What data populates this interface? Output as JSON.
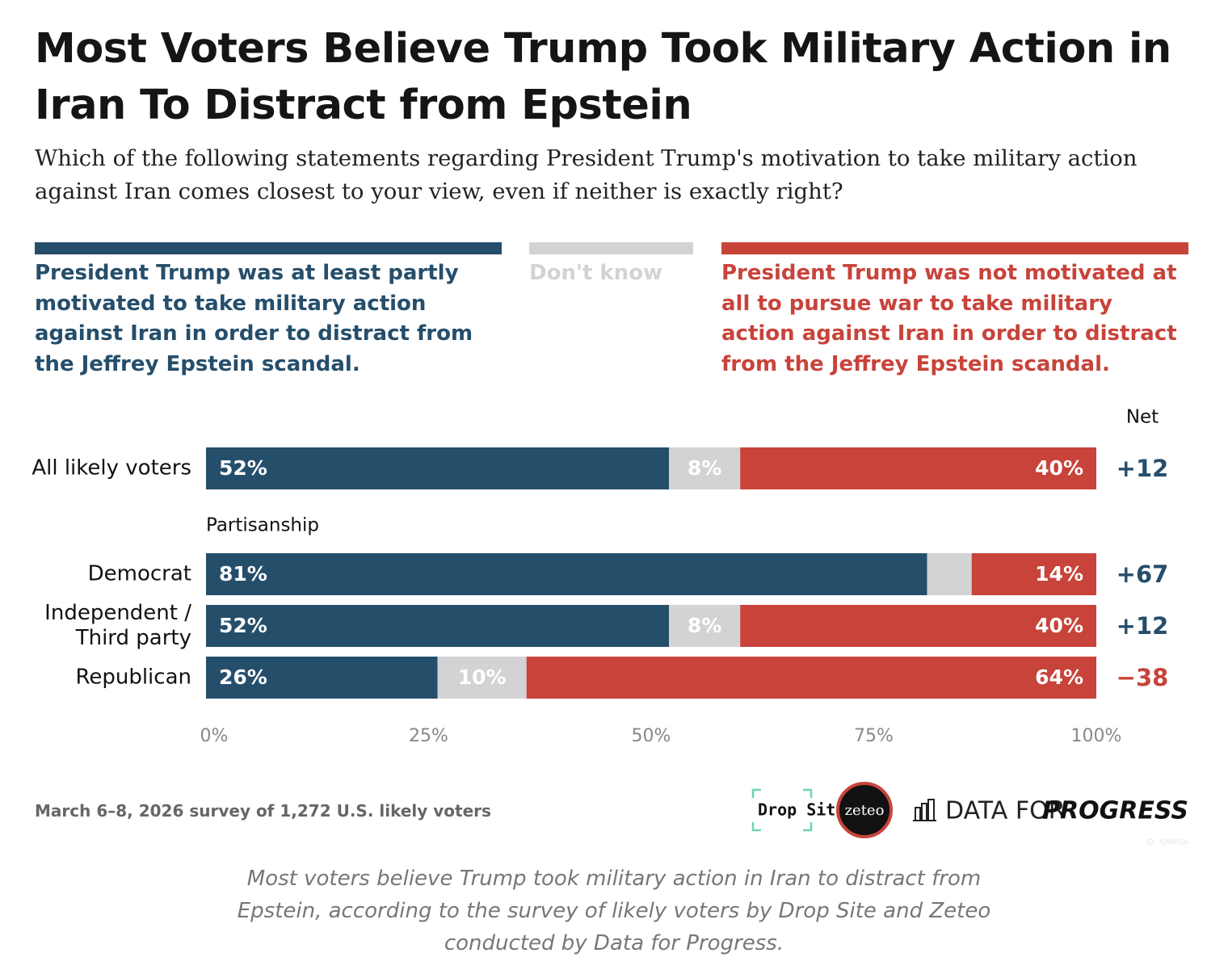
{
  "chart_data": {
    "type": "stacked_bar_horizontal",
    "title": "Most Voters Believe Trump Took Military Action in Iran To Distract from Epstein",
    "subtitle": "Which of the following statements regarding President Trump's motivation to take military action against Iran comes closest to your view, even if neither is exactly right?",
    "categories": [
      "All likely voters",
      "Democrat",
      "Independent / Third party",
      "Republican"
    ],
    "group_label": "Partisanship",
    "series": [
      {
        "name": "President Trump was at least partly motivated to take military action against Iran in order to distract from the Jeffrey Epstein scandal.",
        "color": "#254e6b",
        "values": [
          52,
          81,
          52,
          26
        ],
        "value_labels": [
          "52%",
          "81%",
          "52%",
          "26%"
        ]
      },
      {
        "name": "Don't know",
        "color": "#d3d3d5",
        "values": [
          8,
          5,
          8,
          10
        ],
        "value_labels": [
          "8%",
          null,
          "8%",
          "10%"
        ]
      },
      {
        "name": "President Trump was not motivated at all to pursue war to take military action against Iran in order to distract from the Jeffrey Epstein scandal.",
        "color": "#c8433a",
        "values": [
          40,
          14,
          40,
          64
        ],
        "value_labels": [
          "40%",
          "14%",
          "40%",
          "64%"
        ]
      }
    ],
    "net": {
      "title": "Net",
      "values": [
        12,
        67,
        12,
        -38
      ],
      "value_labels": [
        "+12",
        "+67",
        "+12",
        "−38"
      ]
    },
    "xlim": [
      0,
      100
    ],
    "xticks": [
      {
        "value": 0,
        "label": "0%"
      },
      {
        "value": 25,
        "label": "25%"
      },
      {
        "value": 50,
        "label": "50%"
      },
      {
        "value": 75,
        "label": "75%"
      },
      {
        "value": 100,
        "label": "100%"
      }
    ],
    "source": "March 6–8, 2026 survey of 1,272 U.S. likely voters",
    "logos": [
      "Drop Site",
      "zeteo",
      "DATA FOR",
      "PROGRESS"
    ],
    "id": "ID: AJ9WQA",
    "caption": "Most voters believe Trump took military action in Iran to distract from Epstein, according to the survey of likely voters by Drop Site and Zeteo conducted by Data for Progress."
  }
}
